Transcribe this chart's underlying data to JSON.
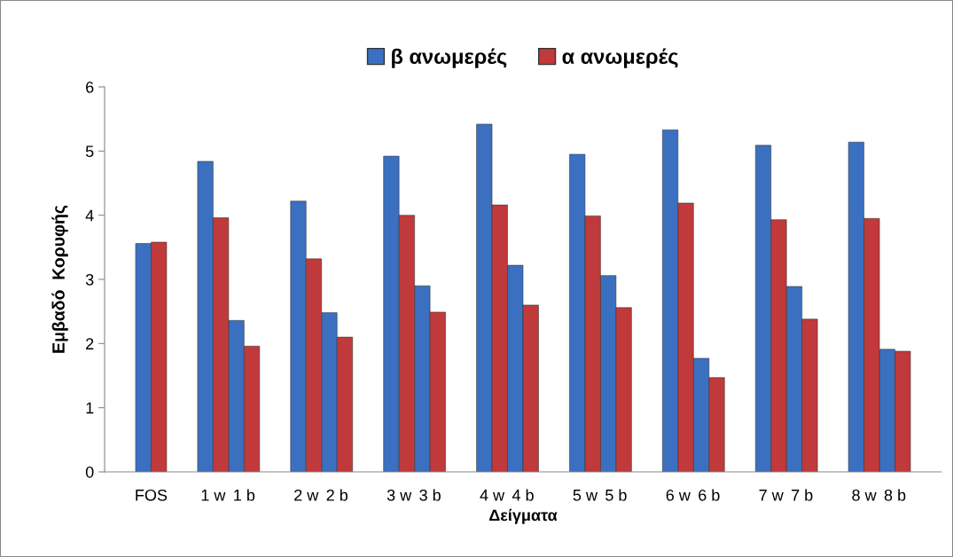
{
  "chart_data": {
    "type": "bar",
    "xlabel": "Δείγματα",
    "ylabel": "Εμβαδό  Κορυφής",
    "categories": [
      null,
      "FOS",
      null,
      "1 w",
      "1 b",
      null,
      "2 w",
      "2 b",
      null,
      "3 w",
      "3 b",
      null,
      "4 w",
      "4 b",
      null,
      "5 w",
      "5 b",
      null,
      "6 w",
      "6 b",
      null,
      "7 w",
      "7 b",
      null,
      "8 w",
      "8 b",
      null
    ],
    "series": [
      {
        "name": "β ανωμερές",
        "color": "#3b70c0",
        "values": [
          null,
          3.56,
          null,
          4.84,
          2.36,
          null,
          4.22,
          2.48,
          null,
          4.92,
          2.9,
          null,
          5.42,
          3.22,
          null,
          4.95,
          3.06,
          null,
          5.33,
          1.77,
          null,
          5.09,
          2.89,
          null,
          5.14,
          1.91,
          null
        ]
      },
      {
        "name": "α ανωμερές",
        "color": "#c0393b",
        "values": [
          null,
          3.58,
          null,
          3.96,
          1.96,
          null,
          3.32,
          2.1,
          null,
          4.0,
          2.49,
          null,
          4.16,
          2.6,
          null,
          3.99,
          2.56,
          null,
          4.19,
          1.47,
          null,
          3.93,
          2.38,
          null,
          3.95,
          1.88,
          null
        ]
      }
    ],
    "ylim": [
      0,
      6
    ],
    "yticks": [
      0,
      1,
      2,
      3,
      4,
      5,
      6
    ],
    "grid": false,
    "legend": "top"
  }
}
